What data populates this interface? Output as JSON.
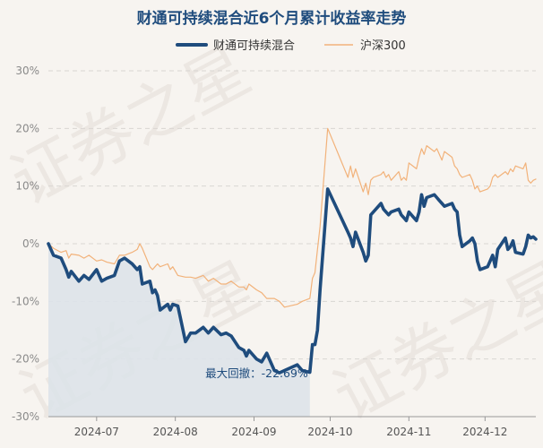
{
  "chart_data": {
    "type": "line",
    "title": "财通可持续混合近6个月累计收益率走势",
    "xlabel": "",
    "ylabel": "",
    "ylim": [
      -30,
      30
    ],
    "yticks": [
      30,
      20,
      10,
      0,
      -10,
      -20,
      -30
    ],
    "ytick_labels": [
      "30%",
      "20%",
      "10%",
      "0%",
      "-10%",
      "-20%",
      "-30%"
    ],
    "x_range": [
      "2024-06-12",
      "2024-12-20"
    ],
    "x_ticks": [
      "2024-07-01",
      "2024-08-01",
      "2024-09-01",
      "2024-10-01",
      "2024-11-01",
      "2024-12-01"
    ],
    "x_tick_labels": [
      "2024-07",
      "2024-08",
      "2024-09",
      "2024-10",
      "2024-11",
      "2024-12"
    ],
    "grid": "horizontal dashed",
    "legend_position": "top-center",
    "series": [
      {
        "name": "财通可持续混合",
        "color": "#1f4c7d",
        "style": "thick",
        "points": [
          [
            "2024-06-12",
            0.0
          ],
          [
            "2024-06-14",
            -2.0
          ],
          [
            "2024-06-17",
            -2.5
          ],
          [
            "2024-06-19",
            -4.5
          ],
          [
            "2024-06-20",
            -5.8
          ],
          [
            "2024-06-21",
            -4.8
          ],
          [
            "2024-06-24",
            -6.5
          ],
          [
            "2024-06-26",
            -5.5
          ],
          [
            "2024-06-28",
            -6.2
          ],
          [
            "2024-07-01",
            -4.5
          ],
          [
            "2024-07-03",
            -6.5
          ],
          [
            "2024-07-05",
            -6.0
          ],
          [
            "2024-07-08",
            -5.5
          ],
          [
            "2024-07-10",
            -3.0
          ],
          [
            "2024-07-12",
            -2.5
          ],
          [
            "2024-07-15",
            -3.5
          ],
          [
            "2024-07-17",
            -4.5
          ],
          [
            "2024-07-18",
            -4.0
          ],
          [
            "2024-07-19",
            -7.0
          ],
          [
            "2024-07-22",
            -6.5
          ],
          [
            "2024-07-23",
            -8.5
          ],
          [
            "2024-07-24",
            -8.0
          ],
          [
            "2024-07-25",
            -9.0
          ],
          [
            "2024-07-26",
            -11.5
          ],
          [
            "2024-07-29",
            -10.5
          ],
          [
            "2024-07-30",
            -11.5
          ],
          [
            "2024-07-31",
            -10.5
          ],
          [
            "2024-08-02",
            -10.8
          ],
          [
            "2024-08-05",
            -17.0
          ],
          [
            "2024-08-07",
            -15.5
          ],
          [
            "2024-08-09",
            -15.5
          ],
          [
            "2024-08-12",
            -14.5
          ],
          [
            "2024-08-14",
            -15.5
          ],
          [
            "2024-08-16",
            -14.5
          ],
          [
            "2024-08-19",
            -15.8
          ],
          [
            "2024-08-21",
            -15.5
          ],
          [
            "2024-08-23",
            -16.0
          ],
          [
            "2024-08-26",
            -18.0
          ],
          [
            "2024-08-28",
            -18.5
          ],
          [
            "2024-08-29",
            -19.5
          ],
          [
            "2024-08-30",
            -18.5
          ],
          [
            "2024-09-02",
            -20.0
          ],
          [
            "2024-09-04",
            -20.5
          ],
          [
            "2024-09-06",
            -19.0
          ],
          [
            "2024-09-09",
            -22.0
          ],
          [
            "2024-09-11",
            -22.4
          ],
          [
            "2024-09-13",
            -22.0
          ],
          [
            "2024-09-18",
            -21.0
          ],
          [
            "2024-09-20",
            -22.0
          ],
          [
            "2024-09-23",
            -22.3
          ],
          [
            "2024-09-24",
            -17.5
          ],
          [
            "2024-09-25",
            -17.5
          ],
          [
            "2024-09-26",
            -15.0
          ],
          [
            "2024-09-27",
            -8.0
          ],
          [
            "2024-09-30",
            9.5
          ],
          [
            "2024-10-08",
            2.0
          ],
          [
            "2024-10-09",
            1.0
          ],
          [
            "2024-10-10",
            -0.5
          ],
          [
            "2024-10-11",
            2.0
          ],
          [
            "2024-10-14",
            -1.5
          ],
          [
            "2024-10-15",
            -3.0
          ],
          [
            "2024-10-16",
            -2.0
          ],
          [
            "2024-10-17",
            5.0
          ],
          [
            "2024-10-18",
            5.5
          ],
          [
            "2024-10-21",
            7.0
          ],
          [
            "2024-10-22",
            6.0
          ],
          [
            "2024-10-23",
            5.5
          ],
          [
            "2024-10-24",
            5.0
          ],
          [
            "2024-10-25",
            5.5
          ],
          [
            "2024-10-28",
            6.0
          ],
          [
            "2024-10-29",
            5.0
          ],
          [
            "2024-10-30",
            4.5
          ],
          [
            "2024-10-31",
            4.0
          ],
          [
            "2024-11-01",
            5.5
          ],
          [
            "2024-11-04",
            4.0
          ],
          [
            "2024-11-05",
            5.5
          ],
          [
            "2024-11-06",
            8.5
          ],
          [
            "2024-11-07",
            6.5
          ],
          [
            "2024-11-08",
            8.0
          ],
          [
            "2024-11-11",
            8.5
          ],
          [
            "2024-11-12",
            8.0
          ],
          [
            "2024-11-13",
            7.5
          ],
          [
            "2024-11-14",
            7.0
          ],
          [
            "2024-11-15",
            6.5
          ],
          [
            "2024-11-18",
            7.0
          ],
          [
            "2024-11-19",
            6.0
          ],
          [
            "2024-11-20",
            5.5
          ],
          [
            "2024-11-21",
            1.5
          ],
          [
            "2024-11-22",
            -0.5
          ],
          [
            "2024-11-25",
            0.5
          ],
          [
            "2024-11-26",
            1.0
          ],
          [
            "2024-11-27",
            0.0
          ],
          [
            "2024-11-28",
            -3.0
          ],
          [
            "2024-11-29",
            -4.5
          ],
          [
            "2024-12-02",
            -4.0
          ],
          [
            "2024-12-03",
            -3.0
          ],
          [
            "2024-12-04",
            -2.0
          ],
          [
            "2024-12-05",
            -4.0
          ],
          [
            "2024-12-06",
            -1.0
          ],
          [
            "2024-12-09",
            1.0
          ],
          [
            "2024-12-10",
            -1.0
          ],
          [
            "2024-12-11",
            -0.5
          ],
          [
            "2024-12-12",
            0.5
          ],
          [
            "2024-12-13",
            -1.5
          ],
          [
            "2024-12-16",
            -1.8
          ],
          [
            "2024-12-17",
            -0.5
          ],
          [
            "2024-12-18",
            1.5
          ],
          [
            "2024-12-19",
            1.0
          ],
          [
            "2024-12-20",
            1.2
          ],
          [
            "2024-12-21",
            0.8
          ]
        ]
      },
      {
        "name": "沪深300",
        "color": "#f2b27a",
        "style": "thin",
        "points": [
          [
            "2024-06-12",
            0.0
          ],
          [
            "2024-06-14",
            -0.8
          ],
          [
            "2024-06-17",
            -1.5
          ],
          [
            "2024-06-19",
            -1.2
          ],
          [
            "2024-06-20",
            -2.5
          ],
          [
            "2024-06-21",
            -1.8
          ],
          [
            "2024-06-24",
            -2.0
          ],
          [
            "2024-06-26",
            -2.5
          ],
          [
            "2024-06-28",
            -2.0
          ],
          [
            "2024-07-01",
            -3.0
          ],
          [
            "2024-07-03",
            -2.8
          ],
          [
            "2024-07-05",
            -3.2
          ],
          [
            "2024-07-08",
            -3.5
          ],
          [
            "2024-07-10",
            -2.0
          ],
          [
            "2024-07-12",
            -2.0
          ],
          [
            "2024-07-15",
            -1.5
          ],
          [
            "2024-07-17",
            -1.0
          ],
          [
            "2024-07-18",
            0.0
          ],
          [
            "2024-07-19",
            -0.8
          ],
          [
            "2024-07-22",
            -4.0
          ],
          [
            "2024-07-23",
            -4.5
          ],
          [
            "2024-07-24",
            -4.0
          ],
          [
            "2024-07-25",
            -3.5
          ],
          [
            "2024-07-26",
            -4.0
          ],
          [
            "2024-07-29",
            -3.5
          ],
          [
            "2024-07-30",
            -4.5
          ],
          [
            "2024-07-31",
            -4.0
          ],
          [
            "2024-08-02",
            -5.5
          ],
          [
            "2024-08-05",
            -5.8
          ],
          [
            "2024-08-07",
            -5.8
          ],
          [
            "2024-08-09",
            -6.0
          ],
          [
            "2024-08-12",
            -5.5
          ],
          [
            "2024-08-14",
            -6.5
          ],
          [
            "2024-08-16",
            -6.0
          ],
          [
            "2024-08-19",
            -7.0
          ],
          [
            "2024-08-21",
            -7.0
          ],
          [
            "2024-08-23",
            -6.5
          ],
          [
            "2024-08-26",
            -7.5
          ],
          [
            "2024-08-28",
            -7.5
          ],
          [
            "2024-08-29",
            -8.0
          ],
          [
            "2024-08-30",
            -7.0
          ],
          [
            "2024-09-02",
            -8.0
          ],
          [
            "2024-09-04",
            -8.5
          ],
          [
            "2024-09-06",
            -9.5
          ],
          [
            "2024-09-09",
            -9.5
          ],
          [
            "2024-09-11",
            -10.0
          ],
          [
            "2024-09-13",
            -11.0
          ],
          [
            "2024-09-18",
            -10.5
          ],
          [
            "2024-09-20",
            -10.0
          ],
          [
            "2024-09-23",
            -9.5
          ],
          [
            "2024-09-24",
            -6.0
          ],
          [
            "2024-09-25",
            -5.0
          ],
          [
            "2024-09-26",
            -1.0
          ],
          [
            "2024-09-27",
            3.0
          ],
          [
            "2024-09-30",
            20.0
          ],
          [
            "2024-10-08",
            11.5
          ],
          [
            "2024-10-09",
            13.5
          ],
          [
            "2024-10-10",
            11.5
          ],
          [
            "2024-10-11",
            13.0
          ],
          [
            "2024-10-14",
            9.0
          ],
          [
            "2024-10-15",
            10.5
          ],
          [
            "2024-10-16",
            8.5
          ],
          [
            "2024-10-17",
            11.0
          ],
          [
            "2024-10-18",
            11.5
          ],
          [
            "2024-10-21",
            12.0
          ],
          [
            "2024-10-22",
            12.5
          ],
          [
            "2024-10-23",
            11.5
          ],
          [
            "2024-10-24",
            12.0
          ],
          [
            "2024-10-25",
            11.0
          ],
          [
            "2024-10-28",
            12.5
          ],
          [
            "2024-10-29",
            11.0
          ],
          [
            "2024-10-30",
            11.5
          ],
          [
            "2024-10-31",
            11.0
          ],
          [
            "2024-11-01",
            14.0
          ],
          [
            "2024-11-04",
            13.0
          ],
          [
            "2024-11-05",
            15.0
          ],
          [
            "2024-11-06",
            16.5
          ],
          [
            "2024-11-07",
            15.5
          ],
          [
            "2024-11-08",
            17.0
          ],
          [
            "2024-11-11",
            16.0
          ],
          [
            "2024-11-12",
            16.5
          ],
          [
            "2024-11-13",
            15.5
          ],
          [
            "2024-11-14",
            14.5
          ],
          [
            "2024-11-15",
            16.0
          ],
          [
            "2024-11-18",
            15.0
          ],
          [
            "2024-11-19",
            13.5
          ],
          [
            "2024-11-20",
            13.0
          ],
          [
            "2024-11-21",
            12.0
          ],
          [
            "2024-11-22",
            11.5
          ],
          [
            "2024-11-25",
            12.0
          ],
          [
            "2024-11-26",
            11.0
          ],
          [
            "2024-11-27",
            9.5
          ],
          [
            "2024-11-28",
            10.0
          ],
          [
            "2024-11-29",
            9.0
          ],
          [
            "2024-12-02",
            9.5
          ],
          [
            "2024-12-03",
            10.0
          ],
          [
            "2024-12-04",
            11.5
          ],
          [
            "2024-12-05",
            12.0
          ],
          [
            "2024-12-06",
            11.5
          ],
          [
            "2024-12-09",
            12.5
          ],
          [
            "2024-12-10",
            12.0
          ],
          [
            "2024-12-11",
            13.0
          ],
          [
            "2024-12-12",
            12.5
          ],
          [
            "2024-12-13",
            13.5
          ],
          [
            "2024-12-16",
            13.0
          ],
          [
            "2024-12-17",
            14.0
          ],
          [
            "2024-12-18",
            11.0
          ],
          [
            "2024-12-19",
            10.5
          ],
          [
            "2024-12-20",
            11.0
          ],
          [
            "2024-12-21",
            11.2
          ]
        ]
      }
    ],
    "drawdown": {
      "label": "最大回撤：-22.69%",
      "start": "2024-06-12",
      "end": "2024-09-23",
      "trough": -22.69,
      "fill_color": "#dde3e9"
    },
    "watermark": "证券之星"
  }
}
